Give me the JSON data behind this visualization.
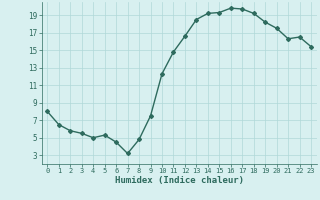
{
  "x": [
    0,
    1,
    2,
    3,
    4,
    5,
    6,
    7,
    8,
    9,
    10,
    11,
    12,
    13,
    14,
    15,
    16,
    17,
    18,
    19,
    20,
    21,
    22,
    23
  ],
  "y": [
    8.0,
    6.5,
    5.8,
    5.5,
    5.0,
    5.3,
    4.5,
    3.2,
    4.8,
    7.5,
    12.3,
    14.8,
    16.6,
    18.5,
    19.2,
    19.3,
    19.8,
    19.7,
    19.2,
    18.2,
    17.5,
    16.3,
    16.5,
    15.4
  ],
  "line_color": "#2e6b5e",
  "marker": "D",
  "marker_size": 2,
  "bg_color": "#d8f0f0",
  "grid_color": "#b0d8d8",
  "xlabel": "Humidex (Indice chaleur)",
  "ylabel": "",
  "xlim": [
    -0.5,
    23.5
  ],
  "ylim": [
    2,
    20.5
  ],
  "yticks": [
    3,
    5,
    7,
    9,
    11,
    13,
    15,
    17,
    19
  ],
  "xticks": [
    0,
    1,
    2,
    3,
    4,
    5,
    6,
    7,
    8,
    9,
    10,
    11,
    12,
    13,
    14,
    15,
    16,
    17,
    18,
    19,
    20,
    21,
    22,
    23
  ],
  "xtick_labels": [
    "0",
    "1",
    "2",
    "3",
    "4",
    "5",
    "6",
    "7",
    "8",
    "9",
    "10",
    "11",
    "12",
    "13",
    "14",
    "15",
    "16",
    "17",
    "18",
    "19",
    "20",
    "21",
    "22",
    "23"
  ],
  "xlabel_color": "#2e6b5e",
  "tick_color": "#2e6b5e",
  "line_width": 1.0
}
